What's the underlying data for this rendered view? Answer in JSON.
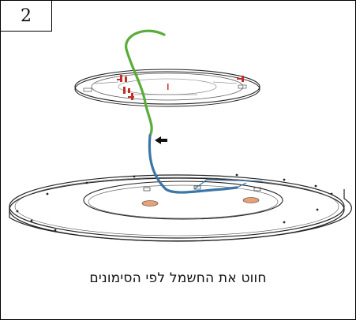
{
  "step": {
    "number": "2"
  },
  "instruction": {
    "text": "חווט את החשמל לפי הסימונים"
  },
  "colors": {
    "wire_green": "#5aac3a",
    "wire_blue": "#3a76a8",
    "marker_red": "#c0302a",
    "knockout_orange": "#e8a075",
    "line": "#222222"
  },
  "icons": {
    "arrow": "arrow-left-icon",
    "wire_green": "green-wire-icon",
    "wire_blue": "blue-wire-icon"
  }
}
